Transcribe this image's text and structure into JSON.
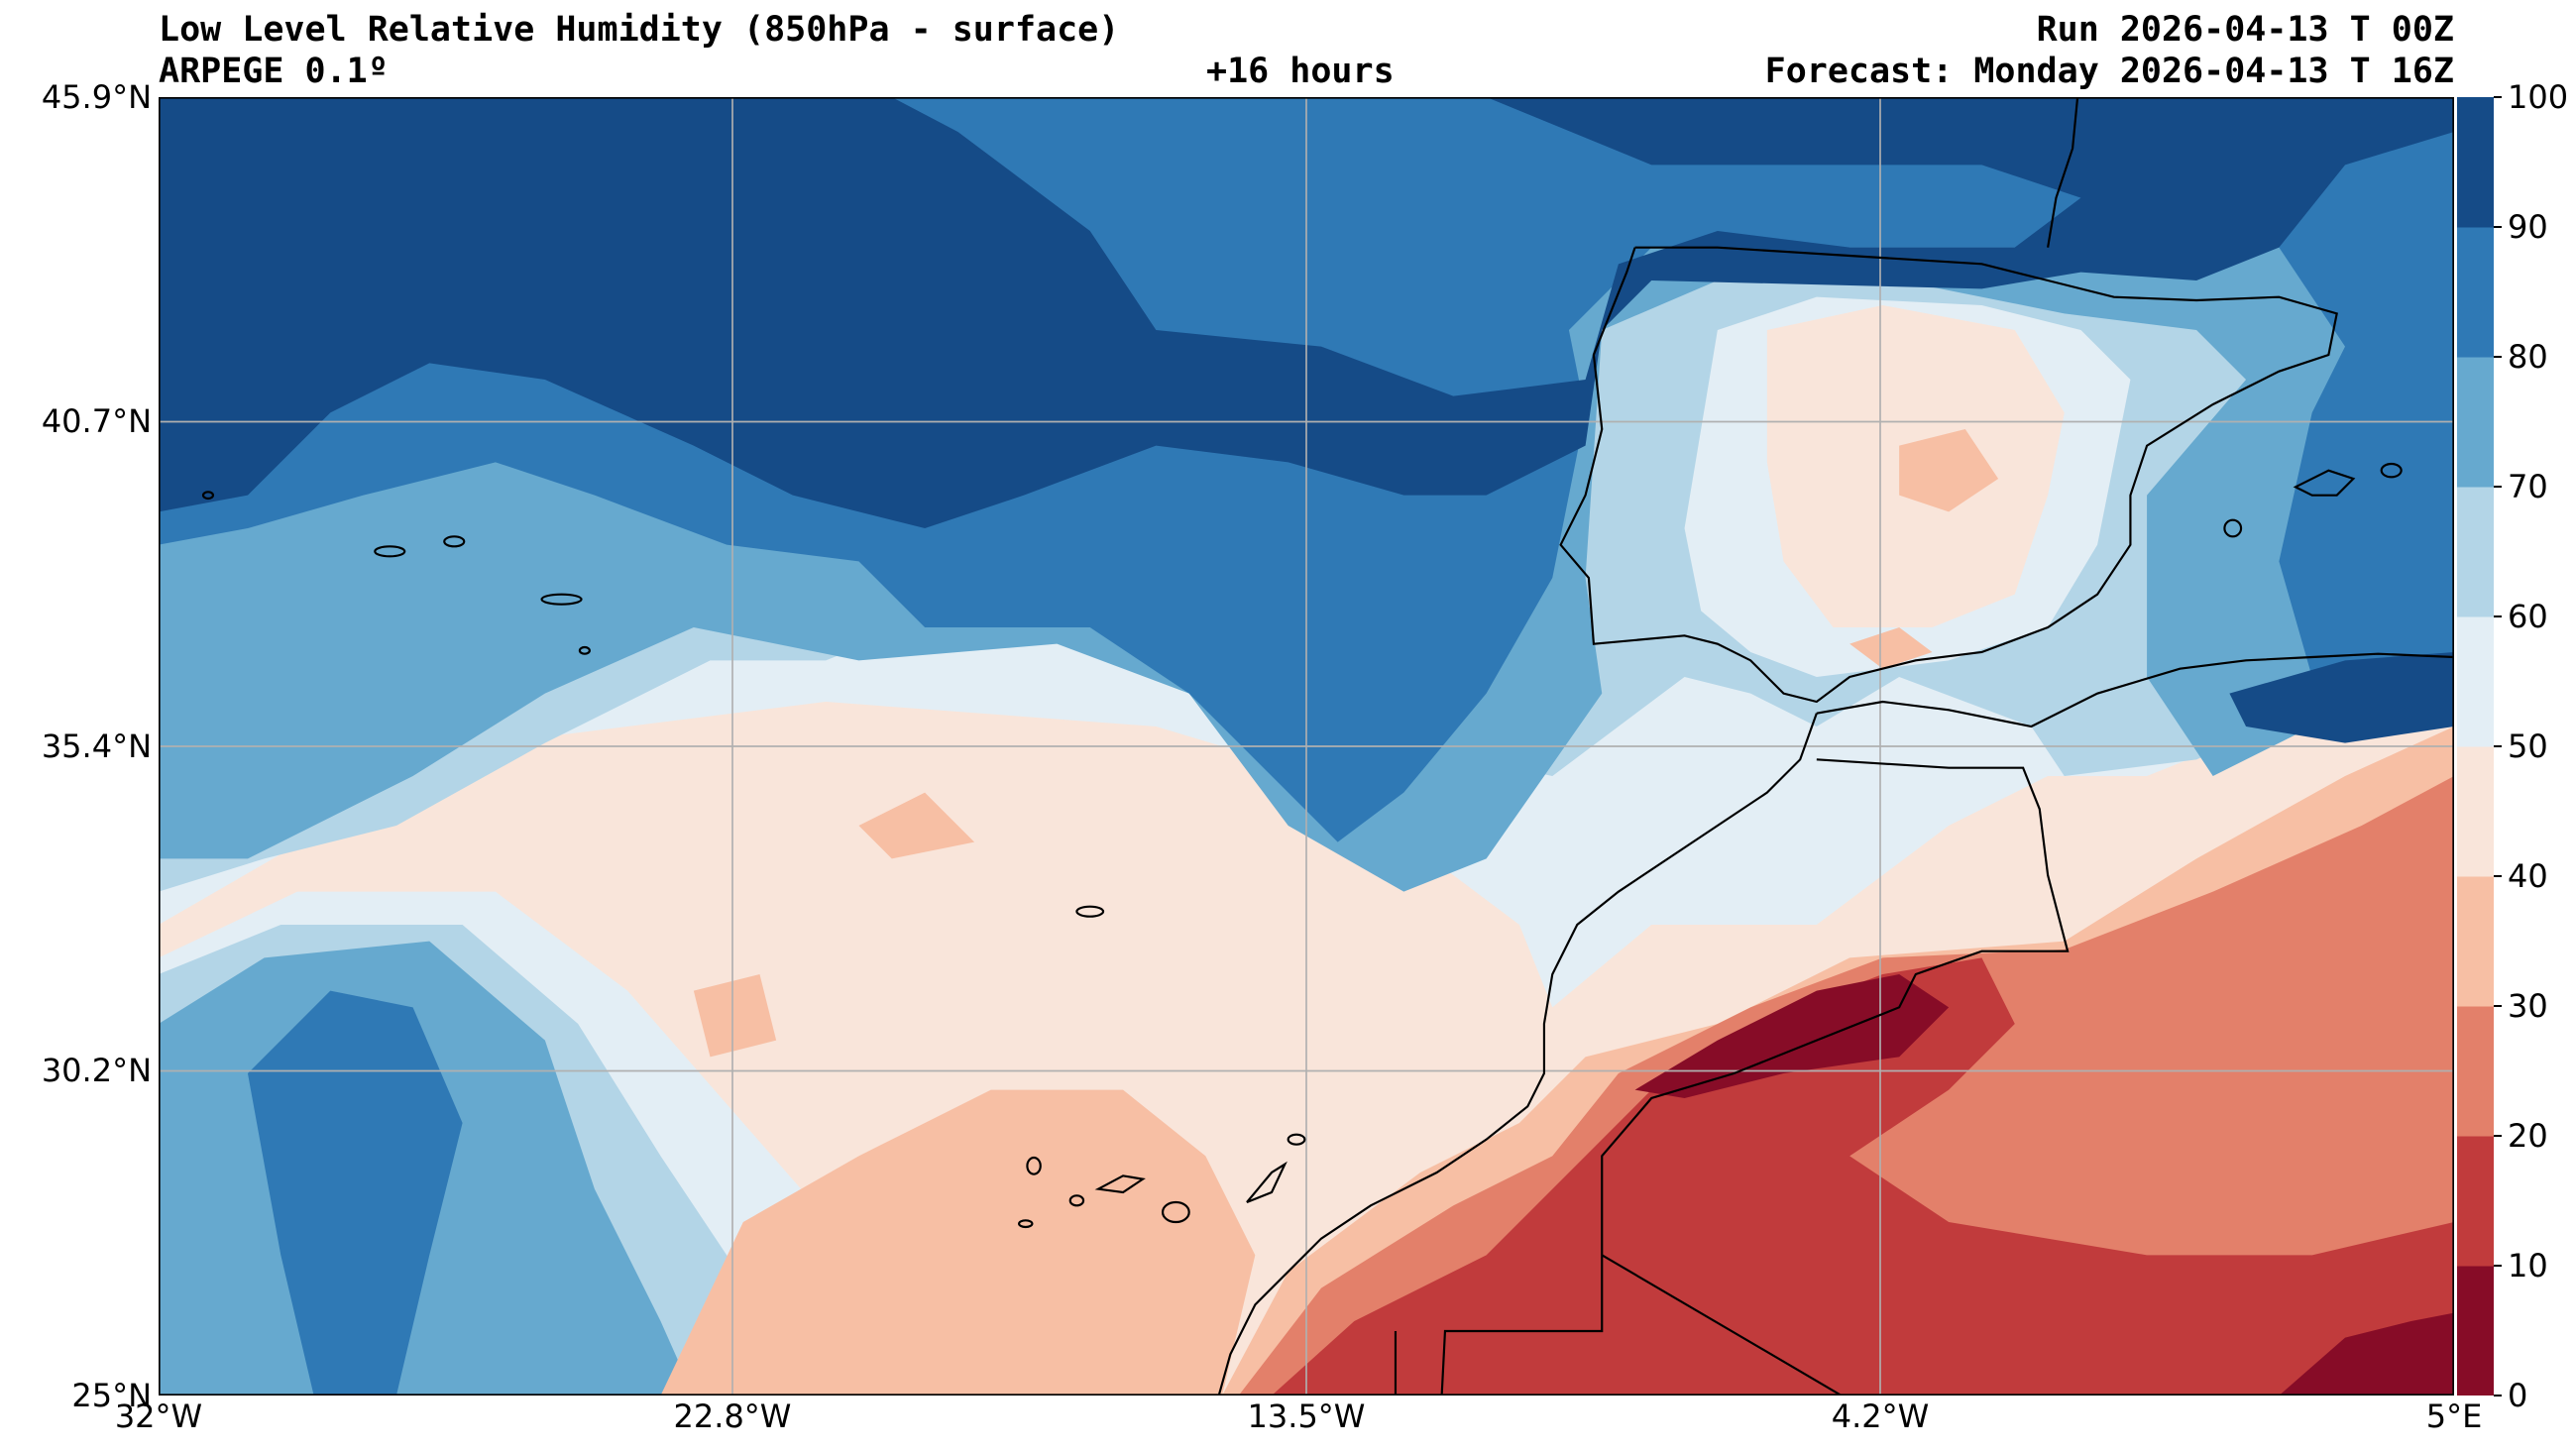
{
  "header": {
    "title": "Low Level Relative Humidity (850hPa - surface)",
    "model": "ARPEGE 0.1º",
    "lead": "+16 hours",
    "run": "Run 2026-04-13 T 00Z",
    "forecast": "Forecast: Monday 2026-04-13 T 16Z"
  },
  "chart_data": {
    "type": "heatmap",
    "subtype": "filled-contour-map",
    "title": "Low Level Relative Humidity (850hPa - surface)",
    "xlabel": "",
    "ylabel": "",
    "x_ticks": [
      "32°W",
      "22.8°W",
      "13.5°W",
      "4.2°W",
      "5°E"
    ],
    "x_values": [
      -32,
      -22.8,
      -13.5,
      -4.2,
      5
    ],
    "y_ticks": [
      "45.9°N",
      "40.7°N",
      "35.4°N",
      "30.2°N",
      "25°N"
    ],
    "y_values": [
      45.9,
      40.7,
      35.4,
      30.2,
      25
    ],
    "xlim": [
      -32,
      5
    ],
    "ylim": [
      25,
      45.9
    ],
    "grid": true,
    "colorbar": {
      "levels": [
        0,
        10,
        20,
        30,
        40,
        50,
        60,
        70,
        80,
        90,
        100
      ],
      "tick_labels": [
        "0",
        "10",
        "20",
        "30",
        "40",
        "50",
        "60",
        "70",
        "80",
        "90",
        "100"
      ],
      "colors": [
        "#870c27",
        "#c13b3c",
        "#e3806a",
        "#f7bfa4",
        "#f9e5da",
        "#e3eef5",
        "#b3d5e7",
        "#66a9cf",
        "#2f79b5",
        "#154b87"
      ],
      "placement": "right"
    }
  }
}
